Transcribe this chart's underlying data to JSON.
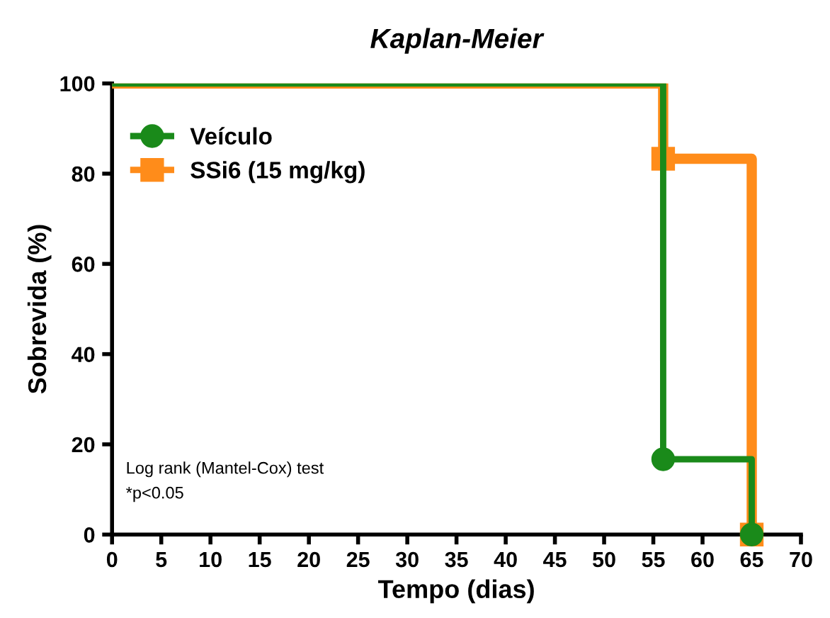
{
  "chart_data": {
    "type": "step",
    "title": "Kaplan-Meier",
    "xlabel": "Tempo (dias)",
    "ylabel": "Sobrevida (%)",
    "series": [
      {
        "name": "Veículo",
        "color": "#1a8a1a",
        "marker": "circle",
        "x": [
          0,
          56,
          65
        ],
        "values": [
          100,
          16.7,
          0
        ]
      },
      {
        "name": "SSi6 (15 mg/kg)",
        "color": "#ff8c1a",
        "marker": "square",
        "x": [
          0,
          56,
          65
        ],
        "values": [
          100,
          83.3,
          0
        ]
      }
    ],
    "xlim": [
      0,
      70
    ],
    "xticks": [
      0,
      5,
      10,
      15,
      20,
      25,
      30,
      35,
      40,
      45,
      50,
      55,
      60,
      65,
      70
    ],
    "ylim": [
      0,
      100
    ],
    "yticks": [
      0,
      20,
      40,
      60,
      80,
      100
    ],
    "grid": false,
    "legend": "top left",
    "annotations": [
      "Log rank (Mantel-Cox) test",
      "*p<0.05"
    ]
  }
}
